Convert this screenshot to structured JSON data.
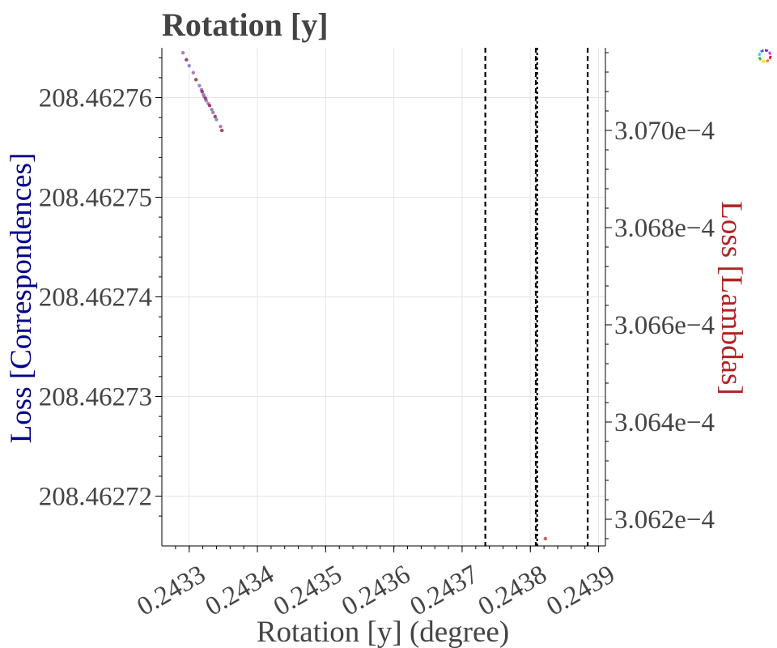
{
  "chart_data": {
    "type": "scatter",
    "title": "Rotation [y]",
    "xlabel": "Rotation [y] (degree)",
    "ylabel": "Loss [Correspondences]",
    "y2label": "Loss [Lambdas]",
    "xlim": [
      0.24326,
      0.24391
    ],
    "ylim": [
      208.462715,
      208.462765
    ],
    "y2lim": [
      0.000306145,
      0.00030717
    ],
    "x_ticks": [
      0.2433,
      0.2434,
      0.2435,
      0.2436,
      0.2437,
      0.2438,
      0.2439
    ],
    "x_tick_labels": [
      "0.2433",
      "0.2434",
      "0.2435",
      "0.2436",
      "0.2437",
      "0.2438",
      "0.2439"
    ],
    "y_ticks": [
      208.46272,
      208.46273,
      208.46274,
      208.46275,
      208.46276
    ],
    "y_tick_labels": [
      "208.46272",
      "208.46273",
      "208.46274",
      "208.46275",
      "208.46276"
    ],
    "y2_ticks": [
      0.0003062,
      0.0003064,
      0.0003066,
      0.0003068,
      0.000307
    ],
    "y2_tick_labels": [
      "3.062e−4",
      "3.064e−4",
      "3.066e−4",
      "3.068e−4",
      "3.070e−4"
    ],
    "vlines": [
      {
        "x": 0.243734,
        "style": "dashed"
      },
      {
        "x": 0.24381,
        "style": "dotted"
      },
      {
        "x": 0.243808,
        "style": "dashed"
      },
      {
        "x": 0.243884,
        "style": "dashed"
      }
    ],
    "series": [
      {
        "axis": "left",
        "points": [
          [
            0.243291,
            208.4627645
          ],
          [
            0.243296,
            208.4627638
          ],
          [
            0.2433,
            208.4627632
          ],
          [
            0.243306,
            208.4627625
          ],
          [
            0.24331,
            208.4627618
          ],
          [
            0.243315,
            208.4627612
          ],
          [
            0.243318,
            208.4627608
          ],
          [
            0.243319,
            208.4627606
          ],
          [
            0.243321,
            208.4627603
          ],
          [
            0.243322,
            208.4627601
          ],
          [
            0.243324,
            208.4627599
          ],
          [
            0.243325,
            208.4627597
          ],
          [
            0.243328,
            208.4627594
          ],
          [
            0.24333,
            208.4627592
          ],
          [
            0.243333,
            208.4627588
          ],
          [
            0.243335,
            208.4627585
          ],
          [
            0.243338,
            208.4627581
          ],
          [
            0.24334,
            208.4627578
          ],
          [
            0.243346,
            208.4627571
          ],
          [
            0.243348,
            208.4627567
          ]
        ]
      },
      {
        "axis": "right",
        "points": [
          [
            0.243822,
            0.00030616
          ]
        ]
      }
    ],
    "grid": true,
    "legend": "none"
  }
}
